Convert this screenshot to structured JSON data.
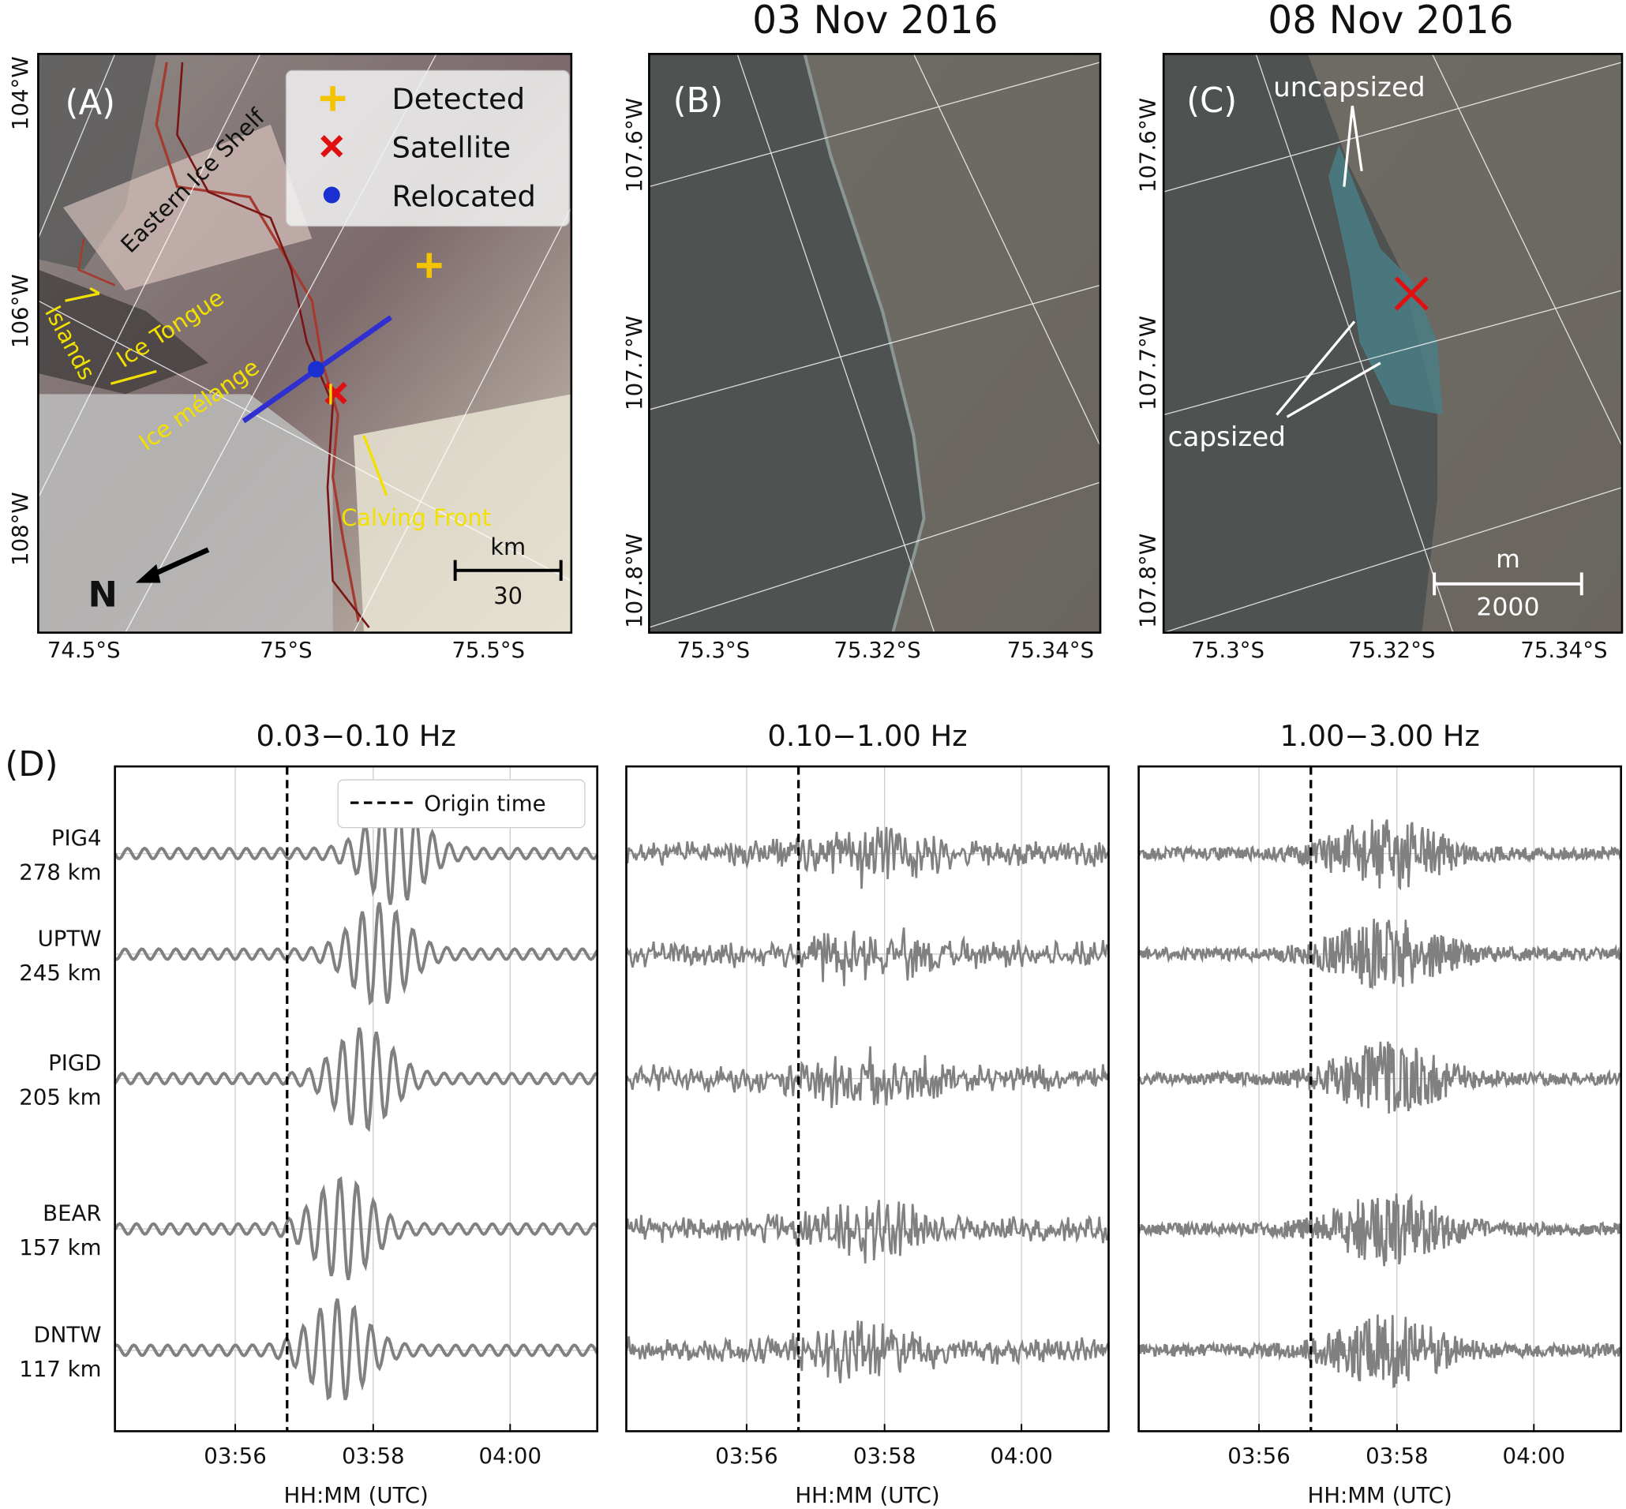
{
  "panel_a": {
    "label": "(A)",
    "legend": [
      "Detected",
      "Satellite",
      "Relocated"
    ],
    "annotations": [
      "Eastern Ice Shelf",
      "Islands",
      "Ice Tongue",
      "Ice mélange",
      "Calving Front"
    ],
    "scale_unit": "km",
    "scale_value": "30",
    "north": "N",
    "yticks": [
      "104°W",
      "106°W",
      "108°W"
    ],
    "xticks": [
      "74.5°S",
      "75°S",
      "75.5°S"
    ]
  },
  "panel_b": {
    "title": "03 Nov 2016",
    "label": "(B)",
    "yticks": [
      "107.6°W",
      "107.7°W",
      "107.8°W"
    ],
    "xticks": [
      "75.3°S",
      "75.32°S",
      "75.34°S"
    ]
  },
  "panel_c": {
    "title": "08 Nov 2016",
    "label": "(C)",
    "annotations": [
      "uncapsized",
      "capsized"
    ],
    "scale_unit": "m",
    "scale_value": "2000",
    "yticks": [
      "107.6°W",
      "107.7°W",
      "107.8°W"
    ],
    "xticks": [
      "75.3°S",
      "75.32°S",
      "75.34°S"
    ]
  },
  "panel_d": {
    "label": "(D)",
    "bands": [
      "0.03−0.10 Hz",
      "0.10−1.00 Hz",
      "1.00−3.00 Hz"
    ],
    "legend": "Origin time",
    "xlabel": "HH:MM (UTC)",
    "xticks": [
      "03:56",
      "03:58",
      "04:00"
    ],
    "stations": [
      {
        "name": "PIG4",
        "distance": "278 km"
      },
      {
        "name": "UPTW",
        "distance": "245 km"
      },
      {
        "name": "PIGD",
        "distance": "205 km"
      },
      {
        "name": "BEAR",
        "distance": "157 km"
      },
      {
        "name": "DNTW",
        "distance": "117 km"
      }
    ]
  }
}
